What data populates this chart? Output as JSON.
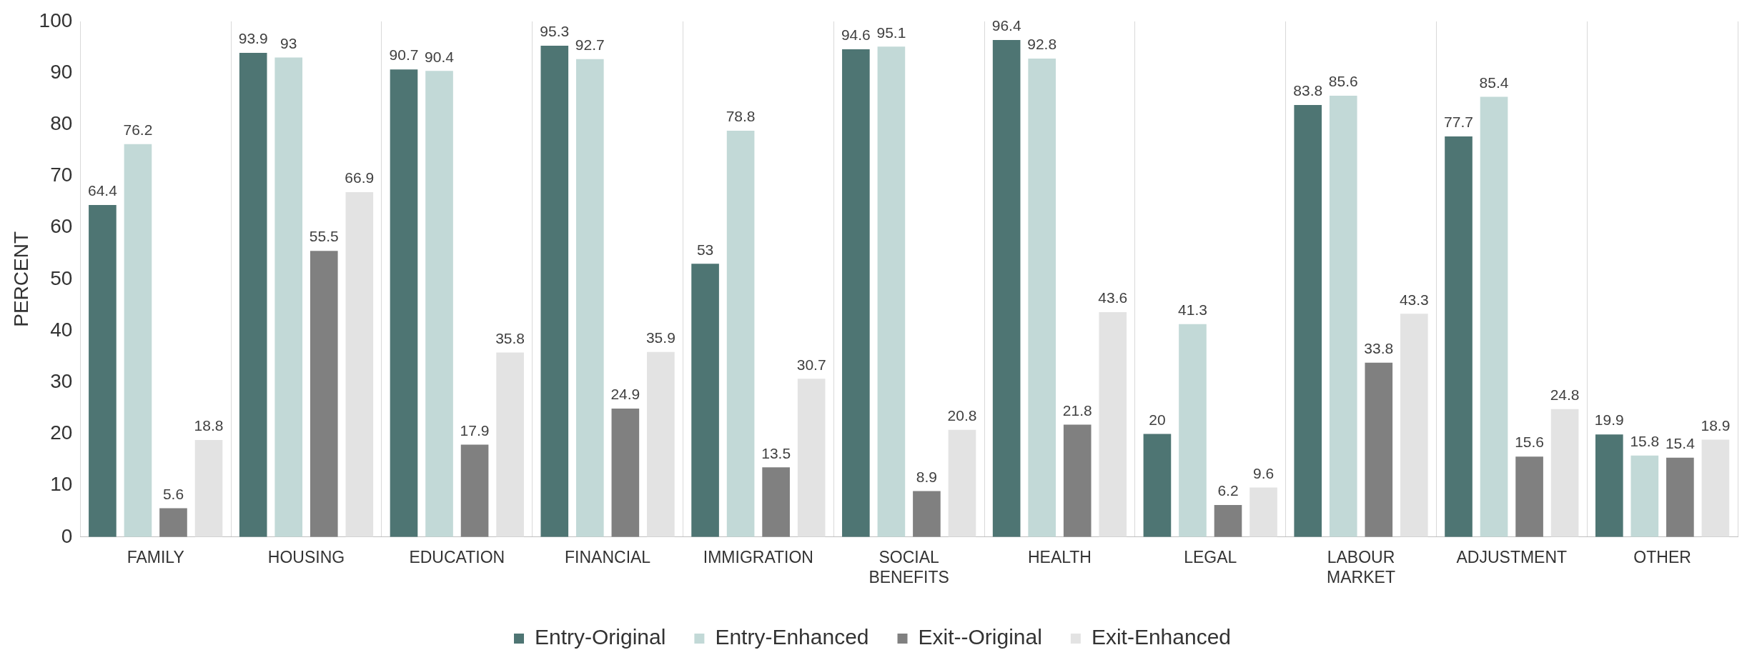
{
  "chart_data": {
    "type": "bar",
    "ylabel": "PERCENT",
    "categories": [
      "FAMILY",
      "HOUSING",
      "EDUCATION",
      "FINANCIAL",
      "IMMIGRATION",
      "SOCIAL BENEFITS",
      "HEALTH",
      "LEGAL",
      "LABOUR MARKET",
      "ADJUSTMENT",
      "OTHER"
    ],
    "series": [
      {
        "name": "Entry-Original",
        "color": "#4e7573",
        "values": [
          64.4,
          93.9,
          90.7,
          95.3,
          53,
          94.6,
          96.4,
          20,
          83.8,
          77.7,
          19.9
        ]
      },
      {
        "name": "Entry-Enhanced",
        "color": "#c2d9d7",
        "values": [
          76.2,
          93,
          90.4,
          92.7,
          78.8,
          95.1,
          92.8,
          41.3,
          85.6,
          85.4,
          15.8
        ]
      },
      {
        "name": "Exit--Original",
        "color": "#808080",
        "values": [
          5.6,
          55.5,
          17.9,
          24.9,
          13.5,
          8.9,
          21.8,
          6.2,
          33.8,
          15.6,
          15.4
        ]
      },
      {
        "name": "Exit-Enhanced",
        "color": "#e3e3e3",
        "values": [
          18.8,
          66.9,
          35.8,
          35.9,
          30.7,
          20.8,
          43.6,
          9.6,
          43.3,
          24.8,
          18.9
        ]
      }
    ],
    "ylim": [
      0,
      100
    ],
    "yticks": [
      0,
      10,
      20,
      30,
      40,
      50,
      60,
      70,
      80,
      90,
      100
    ],
    "grid": "x",
    "legend": "bottom",
    "data_labels": true
  }
}
